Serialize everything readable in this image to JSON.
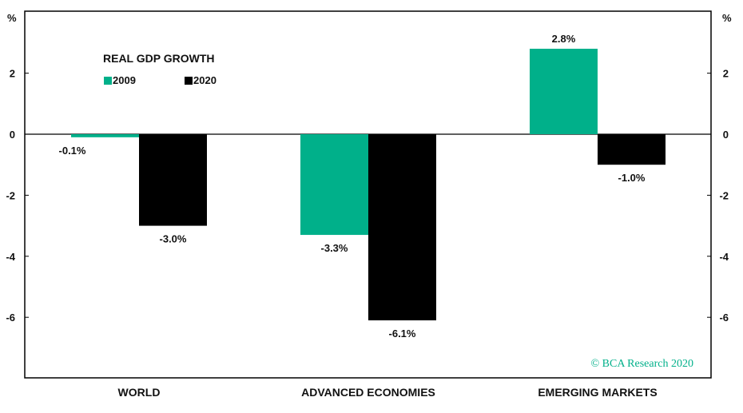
{
  "chart_data": {
    "type": "bar",
    "title": "REAL GDP GROWTH",
    "unit_left": "%",
    "unit_right": "%",
    "categories": [
      "WORLD",
      "ADVANCED ECONOMIES",
      "EMERGING MARKETS"
    ],
    "series": [
      {
        "name": "2009",
        "values": [
          -0.1,
          -3.3,
          2.8
        ],
        "labels": [
          "-0.1%",
          "-3.3%",
          "2.8%"
        ],
        "color": "#00b08a"
      },
      {
        "name": "2020",
        "values": [
          -3.0,
          -6.1,
          -1.0
        ],
        "labels": [
          "-3.0%",
          "-6.1%",
          "-1.0%"
        ],
        "color": "#000000"
      }
    ],
    "ylim": [
      -8,
      4
    ],
    "yticks": [
      2,
      0,
      -2,
      -4,
      -6
    ],
    "ytick_labels": [
      "2",
      "0",
      "-2",
      "-4",
      "-6"
    ],
    "grid": false,
    "zero_line": true,
    "legend_position": "top-left",
    "credit": "© BCA Research 2020",
    "credit_color": "#00b08a"
  }
}
